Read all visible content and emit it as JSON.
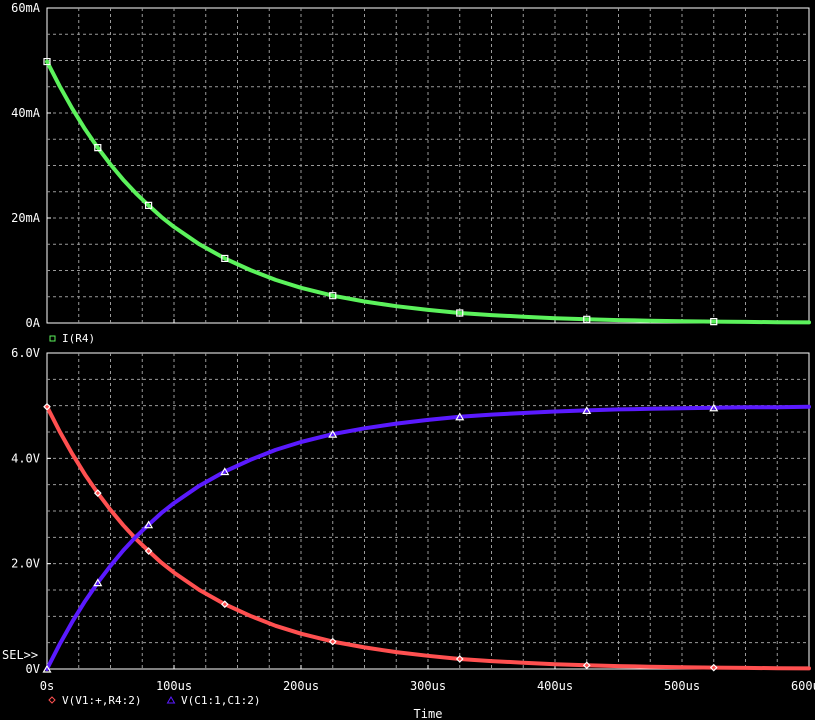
{
  "chart_data": [
    {
      "type": "line",
      "title": "",
      "xlabel": "",
      "ylabel": "",
      "xlim": [
        0,
        600
      ],
      "ylim": [
        0,
        60
      ],
      "grid": true,
      "x_tick_values": [
        0,
        100,
        200,
        300,
        400,
        500,
        600
      ],
      "y_ticks": [
        {
          "value": 0,
          "label": "0A"
        },
        {
          "value": 20,
          "label": "20mA"
        },
        {
          "value": 40,
          "label": "40mA"
        },
        {
          "value": 60,
          "label": "60mA"
        }
      ],
      "legend_position": "bottom-left",
      "series": [
        {
          "name": "I(R4)",
          "color": "#5cf25c",
          "marker": "square",
          "x": [
            0,
            10,
            20,
            30,
            40,
            50,
            60,
            70,
            80,
            90,
            100,
            120,
            140,
            160,
            180,
            200,
            225,
            250,
            275,
            300,
            325,
            350,
            375,
            400,
            425,
            450,
            475,
            500,
            525,
            550,
            575,
            600
          ],
          "values": [
            49.8,
            45.1,
            40.8,
            36.9,
            33.4,
            30.2,
            27.3,
            24.7,
            22.4,
            20.2,
            18.3,
            15.0,
            12.3,
            10.1,
            8.2,
            6.7,
            5.2,
            4.1,
            3.2,
            2.5,
            1.9,
            1.5,
            1.2,
            0.9,
            0.7,
            0.55,
            0.43,
            0.33,
            0.26,
            0.2,
            0.16,
            0.12
          ]
        }
      ]
    },
    {
      "type": "line",
      "title": "",
      "xlabel": "Time",
      "ylabel": "",
      "xlim": [
        0,
        600
      ],
      "ylim": [
        0,
        6
      ],
      "grid": true,
      "x_ticks": [
        {
          "value": 0,
          "label": "0s"
        },
        {
          "value": 100,
          "label": "100us"
        },
        {
          "value": 200,
          "label": "200us"
        },
        {
          "value": 300,
          "label": "300us"
        },
        {
          "value": 400,
          "label": "400us"
        },
        {
          "value": 500,
          "label": "500us"
        },
        {
          "value": 600,
          "label": "600us"
        }
      ],
      "y_ticks": [
        {
          "value": 0,
          "label": "0V"
        },
        {
          "value": 2,
          "label": "2.0V"
        },
        {
          "value": 4,
          "label": "4.0V"
        },
        {
          "value": 6,
          "label": "6.0V"
        }
      ],
      "legend_position": "bottom-left",
      "selection_label": "SEL>>",
      "series": [
        {
          "name": "V(V1:+,R4:2)",
          "color": "#ff5050",
          "marker": "diamond",
          "x": [
            0,
            10,
            20,
            30,
            40,
            50,
            60,
            70,
            80,
            90,
            100,
            120,
            140,
            160,
            180,
            200,
            225,
            250,
            275,
            300,
            325,
            350,
            375,
            400,
            425,
            450,
            475,
            500,
            525,
            550,
            575,
            600
          ],
          "values": [
            4.98,
            4.51,
            4.08,
            3.69,
            3.34,
            3.02,
            2.73,
            2.47,
            2.24,
            2.02,
            1.83,
            1.5,
            1.23,
            1.01,
            0.82,
            0.67,
            0.52,
            0.41,
            0.32,
            0.25,
            0.19,
            0.15,
            0.12,
            0.09,
            0.07,
            0.055,
            0.043,
            0.033,
            0.026,
            0.02,
            0.016,
            0.012
          ]
        },
        {
          "name": "V(C1:1,C1:2)",
          "color": "#5a1aff",
          "marker": "triangle",
          "x": [
            0,
            10,
            20,
            30,
            40,
            50,
            60,
            70,
            80,
            90,
            100,
            120,
            140,
            160,
            180,
            200,
            225,
            250,
            275,
            300,
            325,
            350,
            375,
            400,
            425,
            450,
            475,
            500,
            525,
            550,
            575,
            600
          ],
          "values": [
            0.0,
            0.47,
            0.9,
            1.29,
            1.64,
            1.96,
            2.25,
            2.51,
            2.74,
            2.96,
            3.15,
            3.48,
            3.75,
            3.97,
            4.16,
            4.31,
            4.46,
            4.57,
            4.66,
            4.73,
            4.79,
            4.83,
            4.86,
            4.89,
            4.91,
            4.93,
            4.94,
            4.95,
            4.96,
            4.97,
            4.97,
            4.98
          ]
        }
      ]
    }
  ]
}
